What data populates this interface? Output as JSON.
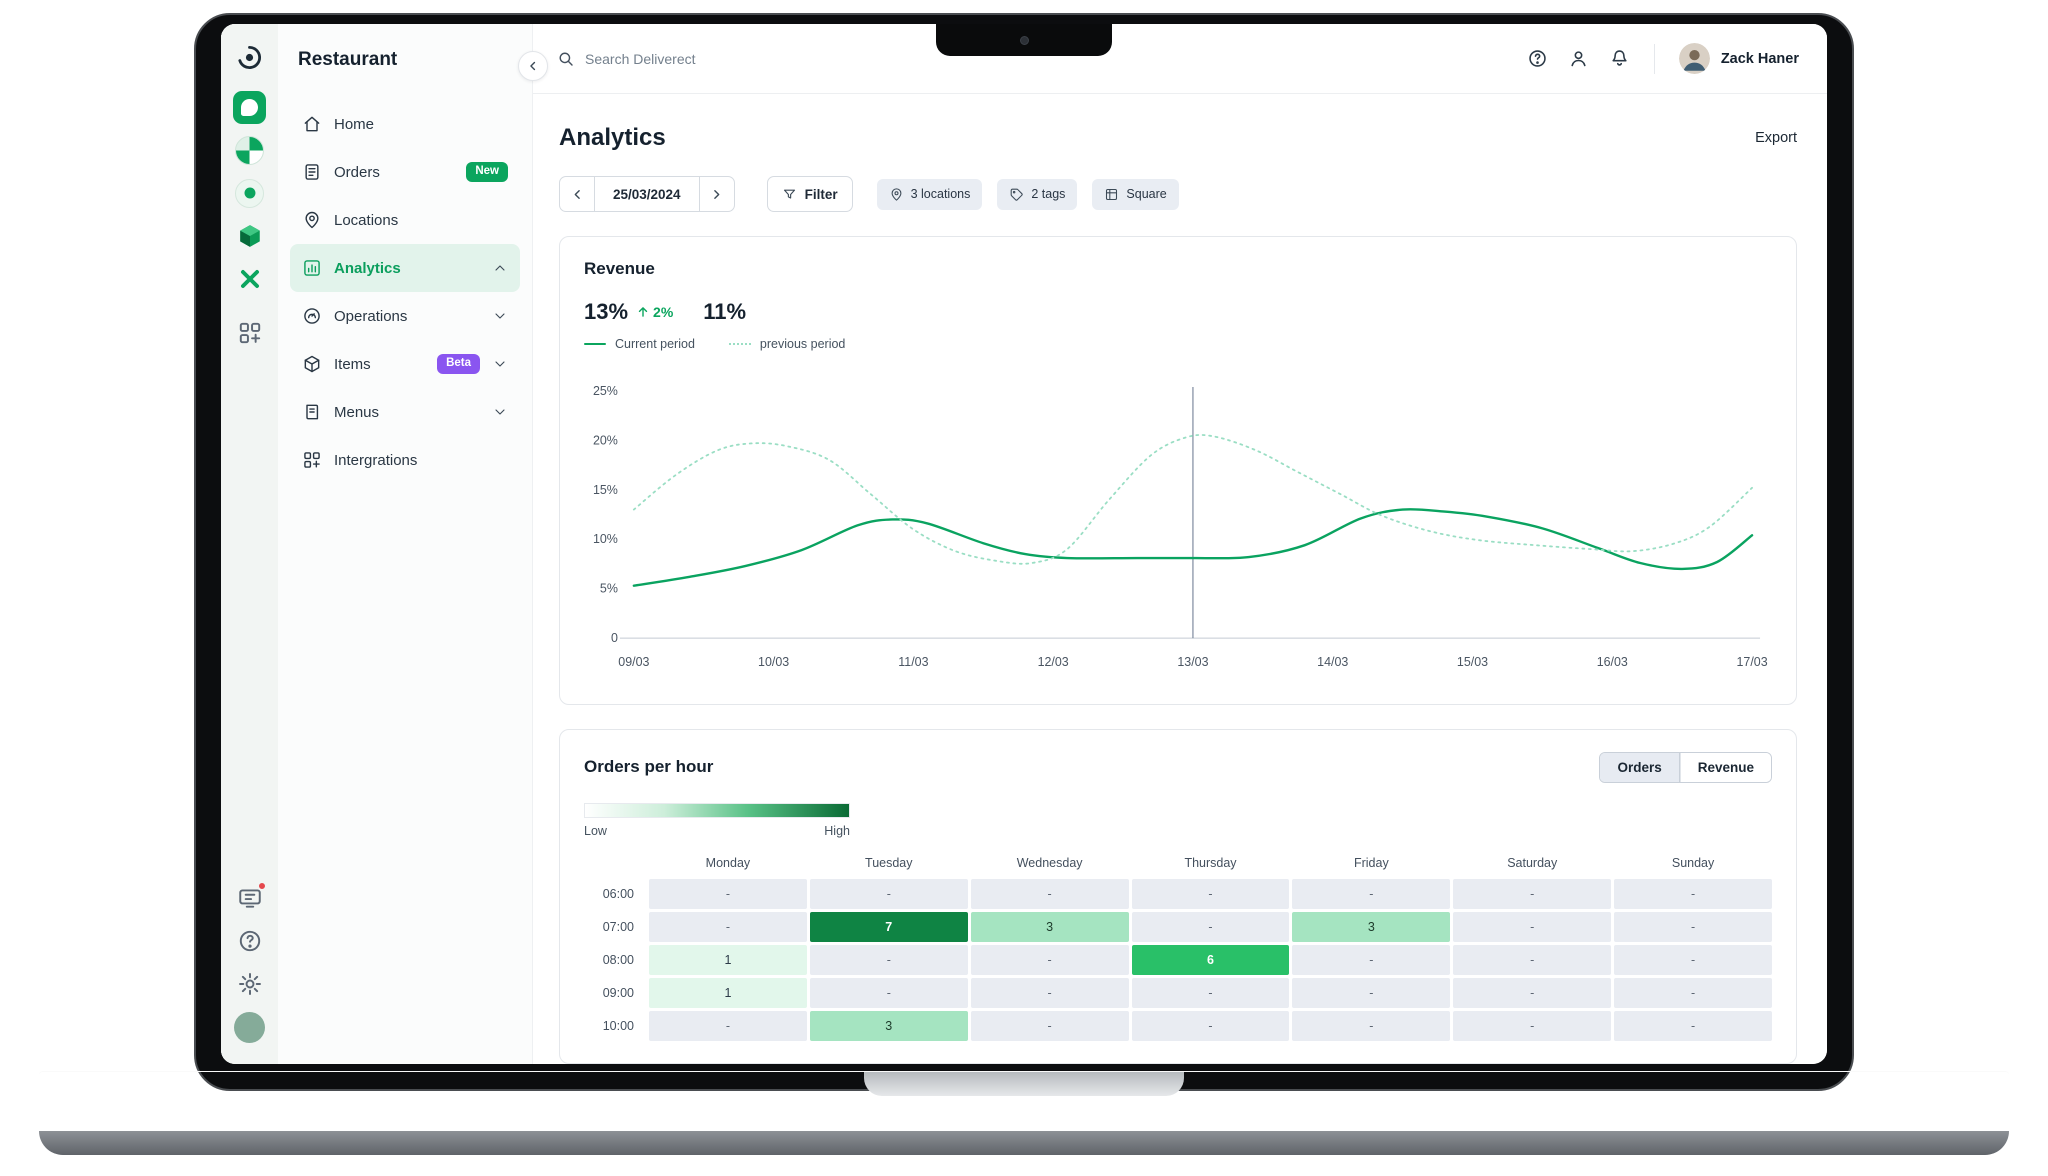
{
  "icon_rail": {
    "logo": "deliverect-logo",
    "apps": [
      "dispatch-app-icon",
      "channels-app-icon",
      "orders-status-app-icon",
      "stock-app-icon",
      "pulse-app-icon"
    ],
    "apps_menu_icon": "apps-grid-icon",
    "bottom": [
      "kds-icon",
      "help-icon",
      "settings-icon",
      "user-avatar"
    ]
  },
  "sidebar": {
    "title": "Restaurant",
    "items": [
      {
        "label": "Home",
        "icon": "home-icon"
      },
      {
        "label": "Orders",
        "icon": "orders-icon",
        "badge": "New",
        "badge_style": "green"
      },
      {
        "label": "Locations",
        "icon": "locations-icon"
      },
      {
        "label": "Analytics",
        "icon": "analytics-icon",
        "selected": true,
        "chevron": "up"
      },
      {
        "label": "Operations",
        "icon": "operations-icon",
        "chevron": "down"
      },
      {
        "label": "Items",
        "icon": "items-icon",
        "badge": "Beta",
        "badge_style": "purple",
        "chevron": "down"
      },
      {
        "label": "Menus",
        "icon": "menus-icon",
        "chevron": "down"
      },
      {
        "label": "Intergrations",
        "icon": "integrations-icon"
      }
    ]
  },
  "topbar": {
    "search_placeholder": "Search Deliverect",
    "user_name": "Zack Haner"
  },
  "page": {
    "title": "Analytics",
    "export_label": "Export",
    "date": "25/03/2024",
    "filter_label": "Filter",
    "chips": [
      {
        "label": "3 locations",
        "icon": "location-pin-icon"
      },
      {
        "label": "2 tags",
        "icon": "tag-icon"
      },
      {
        "label": "Square",
        "icon": "square-grid-icon"
      }
    ]
  },
  "revenue": {
    "title": "Revenue",
    "current_value": "13%",
    "delta": "2%",
    "previous_value": "11%",
    "legend": [
      {
        "label": "Current period",
        "style": "solid"
      },
      {
        "label": "previous period",
        "style": "dotted"
      }
    ]
  },
  "chart_data": {
    "type": "line",
    "title": "Revenue",
    "x_categories": [
      "09/03",
      "10/03",
      "11/03",
      "12/03",
      "13/03",
      "14/03",
      "15/03",
      "16/03",
      "17/03"
    ],
    "y_ticks": [
      {
        "v": 25,
        "label": "25%"
      },
      {
        "v": 20,
        "label": "20%"
      },
      {
        "v": 15,
        "label": "15%"
      },
      {
        "v": 10,
        "label": "10%"
      },
      {
        "v": 5,
        "label": "5%"
      },
      {
        "v": 0,
        "label": "0"
      }
    ],
    "y_max": 25,
    "grid": false,
    "cursor_index": 4,
    "legend_position": "top-left",
    "series": [
      {
        "name": "Current period",
        "style": "solid",
        "color": "#0aa360",
        "points": [
          [
            0,
            5.3
          ],
          [
            0.4,
            6.2
          ],
          [
            0.8,
            7.3
          ],
          [
            1.2,
            8.9
          ],
          [
            1.6,
            11.4
          ],
          [
            1.85,
            12
          ],
          [
            2.1,
            11.6
          ],
          [
            2.5,
            9.6
          ],
          [
            2.8,
            8.5
          ],
          [
            3.1,
            8.1
          ],
          [
            3.6,
            8.1
          ],
          [
            4,
            8.1
          ],
          [
            4.4,
            8.2
          ],
          [
            4.8,
            9.4
          ],
          [
            5.2,
            12.1
          ],
          [
            5.5,
            13
          ],
          [
            5.8,
            12.8
          ],
          [
            6.1,
            12.3
          ],
          [
            6.5,
            11.1
          ],
          [
            6.9,
            9.1
          ],
          [
            7.2,
            7.6
          ],
          [
            7.5,
            7
          ],
          [
            7.75,
            7.7
          ],
          [
            8,
            10.4
          ]
        ]
      },
      {
        "name": "previous period",
        "style": "dotted",
        "color": "#9adec4",
        "points": [
          [
            0,
            13
          ],
          [
            0.3,
            16.5
          ],
          [
            0.6,
            19
          ],
          [
            0.85,
            19.7
          ],
          [
            1.1,
            19.4
          ],
          [
            1.4,
            18
          ],
          [
            1.7,
            14.5
          ],
          [
            2,
            11
          ],
          [
            2.3,
            8.8
          ],
          [
            2.6,
            7.8
          ],
          [
            2.85,
            7.6
          ],
          [
            3.1,
            9
          ],
          [
            3.4,
            14
          ],
          [
            3.7,
            18.5
          ],
          [
            3.95,
            20.3
          ],
          [
            4.15,
            20.4
          ],
          [
            4.45,
            19
          ],
          [
            4.75,
            16.8
          ],
          [
            5.05,
            14.6
          ],
          [
            5.35,
            12.4
          ],
          [
            5.7,
            10.8
          ],
          [
            6.05,
            9.9
          ],
          [
            6.45,
            9.4
          ],
          [
            6.85,
            9
          ],
          [
            7.15,
            8.8
          ],
          [
            7.45,
            9.6
          ],
          [
            7.7,
            11.3
          ],
          [
            8,
            15.2
          ]
        ]
      }
    ]
  },
  "orders_per_hour": {
    "title": "Orders per hour",
    "toggle": [
      "Orders",
      "Revenue"
    ],
    "selected_toggle": 0,
    "legend_low": "Low",
    "legend_high": "High",
    "days": [
      "Monday",
      "Tuesday",
      "Wednesday",
      "Thursday",
      "Friday",
      "Saturday",
      "Sunday"
    ],
    "rows": [
      {
        "time": "06:00",
        "cells": [
          {
            "t": "-",
            "l": 0
          },
          {
            "t": "-",
            "l": 0
          },
          {
            "t": "-",
            "l": 0
          },
          {
            "t": "-",
            "l": 0
          },
          {
            "t": "-",
            "l": 0
          },
          {
            "t": "-",
            "l": 0
          },
          {
            "t": "-",
            "l": 0
          }
        ]
      },
      {
        "time": "07:00",
        "cells": [
          {
            "t": "-",
            "l": 0
          },
          {
            "t": "7",
            "l": 4
          },
          {
            "t": "3",
            "l": 2
          },
          {
            "t": "-",
            "l": 0
          },
          {
            "t": "3",
            "l": 2
          },
          {
            "t": "-",
            "l": 0
          },
          {
            "t": "-",
            "l": 0
          }
        ]
      },
      {
        "time": "08:00",
        "cells": [
          {
            "t": "1",
            "l": 1
          },
          {
            "t": "-",
            "l": 0
          },
          {
            "t": "-",
            "l": 0
          },
          {
            "t": "6",
            "l": 3
          },
          {
            "t": "-",
            "l": 0
          },
          {
            "t": "-",
            "l": 0
          },
          {
            "t": "-",
            "l": 0
          }
        ]
      },
      {
        "time": "09:00",
        "cells": [
          {
            "t": "1",
            "l": 1
          },
          {
            "t": "-",
            "l": 0
          },
          {
            "t": "-",
            "l": 0
          },
          {
            "t": "-",
            "l": 0
          },
          {
            "t": "-",
            "l": 0
          },
          {
            "t": "-",
            "l": 0
          },
          {
            "t": "-",
            "l": 0
          }
        ]
      },
      {
        "time": "10:00",
        "cells": [
          {
            "t": "-",
            "l": 0
          },
          {
            "t": "3",
            "l": 2
          },
          {
            "t": "-",
            "l": 0
          },
          {
            "t": "-",
            "l": 0
          },
          {
            "t": "-",
            "l": 0
          },
          {
            "t": "-",
            "l": 0
          },
          {
            "t": "-",
            "l": 0
          }
        ]
      }
    ]
  }
}
